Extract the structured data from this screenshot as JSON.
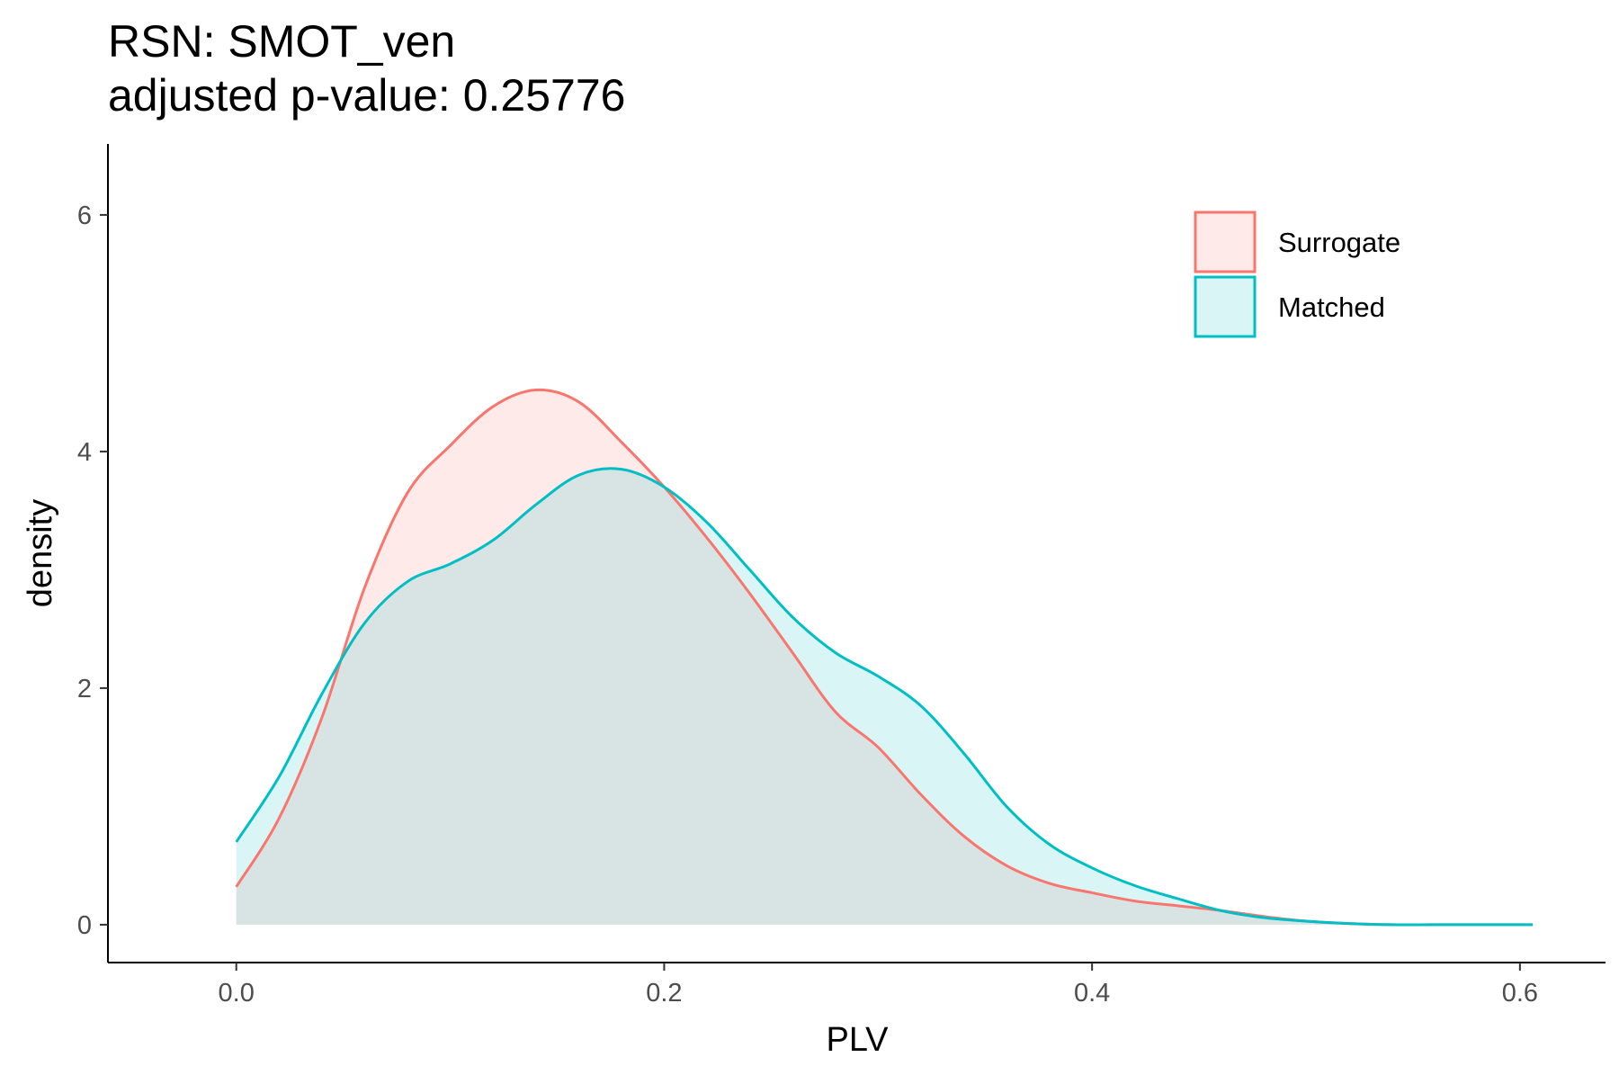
{
  "chart_data": {
    "type": "area",
    "title": "RSN: SMOT_ven",
    "subtitle": "adjusted p-value: 0.25776",
    "xlabel": "PLV",
    "ylabel": "density",
    "xlim": [
      -0.06,
      0.64
    ],
    "ylim": [
      -0.32,
      6.6
    ],
    "x_ticks": [
      0.0,
      0.2,
      0.4,
      0.6
    ],
    "x_tick_labels": [
      "0.0",
      "0.2",
      "0.4",
      "0.6"
    ],
    "y_ticks": [
      0,
      2,
      4,
      6
    ],
    "y_tick_labels": [
      "0",
      "2",
      "4",
      "6"
    ],
    "grid": false,
    "legend_position": "top-right",
    "series": [
      {
        "name": "Surrogate",
        "color": "#F8766D",
        "fill": "#F8766D",
        "x": [
          0.0,
          0.02,
          0.04,
          0.06,
          0.08,
          0.1,
          0.12,
          0.14,
          0.16,
          0.18,
          0.2,
          0.22,
          0.24,
          0.26,
          0.28,
          0.3,
          0.32,
          0.34,
          0.36,
          0.38,
          0.4,
          0.42,
          0.44,
          0.46,
          0.48,
          0.5,
          0.52,
          0.54,
          0.56,
          0.58,
          0.6,
          0.606
        ],
        "y": [
          0.32,
          0.9,
          1.75,
          2.85,
          3.65,
          4.05,
          4.38,
          4.52,
          4.42,
          4.08,
          3.7,
          3.27,
          2.8,
          2.3,
          1.8,
          1.5,
          1.1,
          0.75,
          0.5,
          0.35,
          0.27,
          0.2,
          0.16,
          0.12,
          0.07,
          0.03,
          0.01,
          0.0,
          0.0,
          0.0,
          0.0,
          0.0
        ]
      },
      {
        "name": "Matched",
        "color": "#00BFC4",
        "fill": "#00BFC4",
        "x": [
          0.0,
          0.02,
          0.04,
          0.06,
          0.08,
          0.1,
          0.12,
          0.14,
          0.16,
          0.18,
          0.2,
          0.22,
          0.24,
          0.26,
          0.28,
          0.3,
          0.32,
          0.34,
          0.36,
          0.38,
          0.4,
          0.42,
          0.44,
          0.46,
          0.48,
          0.5,
          0.52,
          0.54,
          0.56,
          0.58,
          0.6,
          0.606
        ],
        "y": [
          0.7,
          1.25,
          1.95,
          2.55,
          2.9,
          3.05,
          3.25,
          3.55,
          3.8,
          3.85,
          3.7,
          3.4,
          3.0,
          2.6,
          2.3,
          2.1,
          1.85,
          1.45,
          1.0,
          0.68,
          0.48,
          0.33,
          0.22,
          0.12,
          0.06,
          0.03,
          0.01,
          0.0,
          0.0,
          0.0,
          0.0,
          0.0
        ]
      }
    ]
  }
}
